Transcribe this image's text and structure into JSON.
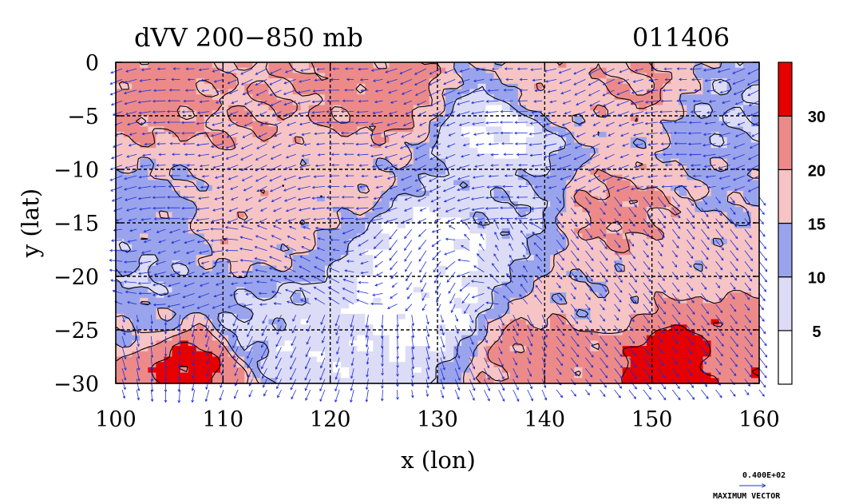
{
  "chart_data": {
    "type": "heatmap",
    "title": "dVV 200−850 mb",
    "date_label": "011406",
    "xlabel": "x (lon)",
    "ylabel": "y (lat)",
    "xlim": [
      100,
      160
    ],
    "ylim": [
      -30,
      0
    ],
    "xticks": [
      100,
      110,
      120,
      130,
      140,
      150,
      160
    ],
    "yticks": [
      0,
      -5,
      -10,
      -15,
      -20,
      -25,
      -30
    ],
    "xtick_labels": [
      "100",
      "110",
      "120",
      "130",
      "140",
      "150",
      "160"
    ],
    "ytick_labels": [
      "0",
      "−5",
      "−10",
      "−15",
      "−20",
      "−25",
      "−30"
    ],
    "grid": true,
    "colorbar": {
      "levels": [
        0,
        5,
        10,
        15,
        20,
        30,
        40
      ],
      "labels": [
        "5",
        "10",
        "15",
        "20",
        "30"
      ],
      "colors": [
        "#ffffff",
        "#dcdcf6",
        "#9aa4ec",
        "#f6c4c4",
        "#ec8a8a",
        "#e60000"
      ]
    },
    "field_centers": [
      {
        "lon": 125,
        "lat": -3,
        "value": 22
      },
      {
        "lon": 112,
        "lat": -4,
        "value": 20
      },
      {
        "lon": 104,
        "lat": -2,
        "value": 22
      },
      {
        "lon": 140,
        "lat": -3,
        "value": 18
      },
      {
        "lon": 148,
        "lat": -2,
        "value": 20
      },
      {
        "lon": 120,
        "lat": -11,
        "value": 17
      },
      {
        "lon": 112,
        "lat": -15,
        "value": 18
      },
      {
        "lon": 103,
        "lat": -15,
        "value": 13
      },
      {
        "lon": 130,
        "lat": -17,
        "value": 3
      },
      {
        "lon": 128,
        "lat": -23,
        "value": 3
      },
      {
        "lon": 136,
        "lat": -6,
        "value": 4
      },
      {
        "lon": 147,
        "lat": -14,
        "value": 21
      },
      {
        "lon": 155,
        "lat": -18,
        "value": 17
      },
      {
        "lon": 145,
        "lat": -22,
        "value": 16
      },
      {
        "lon": 107,
        "lat": -28,
        "value": 32
      },
      {
        "lon": 152,
        "lat": -28,
        "value": 33
      },
      {
        "lon": 158,
        "lat": -28,
        "value": 28
      },
      {
        "lon": 140,
        "lat": -27,
        "value": 22
      },
      {
        "lon": 103,
        "lat": -24,
        "value": 14
      },
      {
        "lon": 113,
        "lat": -25,
        "value": 9
      },
      {
        "lon": 118,
        "lat": -27,
        "value": 6
      },
      {
        "lon": 102,
        "lat": -20,
        "value": 10
      },
      {
        "lon": 158,
        "lat": -5,
        "value": 10
      },
      {
        "lon": 158,
        "lat": -11,
        "value": 14
      },
      {
        "lon": 136,
        "lat": -14,
        "value": 9
      }
    ],
    "contour_value": 15,
    "vector_legend": {
      "value_label": "0.400E+02",
      "caption": "MAXIMUM VECTOR"
    }
  }
}
